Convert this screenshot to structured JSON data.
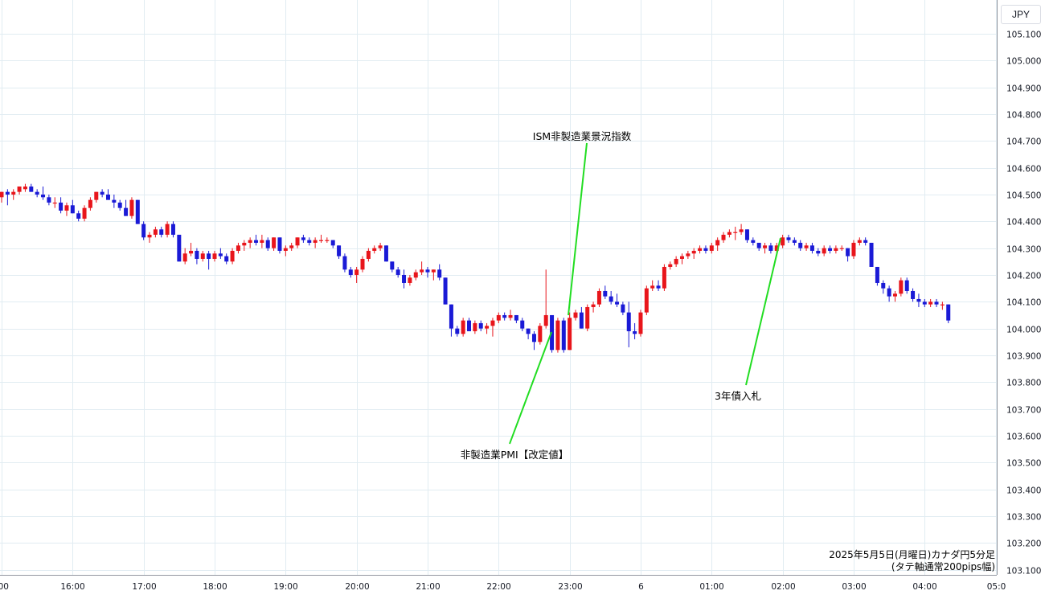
{
  "chart_data": {
    "type": "candlestick",
    "currency_label": "JPY",
    "y_ticks": [
      "105.100",
      "105.000",
      "104.900",
      "104.800",
      "104.700",
      "104.600",
      "104.500",
      "104.400",
      "104.300",
      "104.200",
      "104.100",
      "104.000",
      "103.900",
      "103.800",
      "103.700",
      "103.600",
      "103.500",
      "103.400",
      "103.300",
      "103.200",
      "103.100"
    ],
    "x_ticks": [
      ":00",
      "16:00",
      "17:00",
      "18:00",
      "19:00",
      "20:00",
      "21:00",
      "22:00",
      "23:00",
      "6",
      "01:00",
      "02:00",
      "03:00",
      "04:00",
      "05:0"
    ],
    "ylim": [
      103.09,
      105.13
    ],
    "grid": true,
    "caption_line1": "2025年5月5日(月曜日)カナダ円5分足",
    "caption_line2": "(タテ軸通常200pips幅)",
    "annotations": [
      {
        "label": "ISM非製造業景況指数",
        "time": "23:00"
      },
      {
        "label": "非製造業PMI【改定値】",
        "time": "22:50"
      },
      {
        "label": "3年債入札",
        "time": "02:00"
      }
    ],
    "colors": {
      "up": "#e8151b",
      "down": "#1a1ad6",
      "annotation_line": "#22dd22"
    },
    "start_time": "14:55",
    "interval_minutes": 5,
    "ohlc": [
      [
        104.45,
        104.5,
        104.44,
        104.5
      ],
      [
        104.49,
        104.51,
        104.47,
        104.51
      ],
      [
        104.51,
        104.52,
        104.46,
        104.5
      ],
      [
        104.5,
        104.52,
        104.48,
        104.51
      ],
      [
        104.51,
        104.53,
        104.5,
        104.53
      ],
      [
        104.52,
        104.54,
        104.51,
        104.53
      ],
      [
        104.53,
        104.54,
        104.51,
        104.51
      ],
      [
        104.51,
        104.52,
        104.49,
        104.5
      ],
      [
        104.5,
        104.53,
        104.48,
        104.49
      ],
      [
        104.49,
        104.5,
        104.46,
        104.47
      ],
      [
        104.47,
        104.49,
        104.45,
        104.47
      ],
      [
        104.47,
        104.49,
        104.43,
        104.44
      ],
      [
        104.44,
        104.47,
        104.42,
        104.46
      ],
      [
        104.46,
        104.48,
        104.43,
        104.43
      ],
      [
        104.43,
        104.44,
        104.4,
        104.41
      ],
      [
        104.41,
        104.46,
        104.4,
        104.45
      ],
      [
        104.45,
        104.49,
        104.44,
        104.48
      ],
      [
        104.48,
        104.51,
        104.47,
        104.51
      ],
      [
        104.51,
        104.52,
        104.49,
        104.5
      ],
      [
        104.5,
        104.52,
        104.48,
        104.48
      ],
      [
        104.48,
        104.5,
        104.45,
        104.47
      ],
      [
        104.47,
        104.48,
        104.44,
        104.45
      ],
      [
        104.45,
        104.48,
        104.42,
        104.42
      ],
      [
        104.42,
        104.49,
        104.41,
        104.48
      ],
      [
        104.48,
        104.48,
        104.39,
        104.39
      ],
      [
        104.39,
        104.4,
        104.33,
        104.34
      ],
      [
        104.34,
        104.36,
        104.32,
        104.35
      ],
      [
        104.35,
        104.38,
        104.34,
        104.37
      ],
      [
        104.37,
        104.38,
        104.34,
        104.35
      ],
      [
        104.35,
        104.4,
        104.34,
        104.39
      ],
      [
        104.39,
        104.4,
        104.34,
        104.35
      ],
      [
        104.35,
        104.35,
        104.25,
        104.25
      ],
      [
        104.25,
        104.3,
        104.24,
        104.28
      ],
      [
        104.28,
        104.32,
        104.27,
        104.29
      ],
      [
        104.29,
        104.3,
        104.24,
        104.26
      ],
      [
        104.26,
        104.29,
        104.25,
        104.28
      ],
      [
        104.28,
        104.29,
        104.22,
        104.26
      ],
      [
        104.26,
        104.29,
        104.25,
        104.28
      ],
      [
        104.28,
        104.3,
        104.26,
        104.27
      ],
      [
        104.27,
        104.28,
        104.24,
        104.25
      ],
      [
        104.25,
        104.3,
        104.24,
        104.29
      ],
      [
        104.29,
        104.32,
        104.28,
        104.31
      ],
      [
        104.31,
        104.33,
        104.29,
        104.32
      ],
      [
        104.32,
        104.34,
        104.3,
        104.33
      ],
      [
        104.33,
        104.35,
        104.31,
        104.32
      ],
      [
        104.32,
        104.35,
        104.3,
        104.33
      ],
      [
        104.33,
        104.34,
        104.29,
        104.3
      ],
      [
        104.3,
        104.34,
        104.29,
        104.34
      ],
      [
        104.34,
        104.34,
        104.28,
        104.29
      ],
      [
        104.29,
        104.31,
        104.27,
        104.3
      ],
      [
        104.3,
        104.32,
        104.29,
        104.31
      ],
      [
        104.31,
        104.34,
        104.3,
        104.34
      ],
      [
        104.34,
        104.35,
        104.32,
        104.33
      ],
      [
        104.33,
        104.34,
        104.31,
        104.32
      ],
      [
        104.32,
        104.34,
        104.3,
        104.33
      ],
      [
        104.33,
        104.35,
        104.32,
        104.33
      ],
      [
        104.33,
        104.34,
        104.32,
        104.33
      ],
      [
        104.33,
        104.33,
        104.3,
        104.31
      ],
      [
        104.31,
        104.31,
        104.26,
        104.27
      ],
      [
        104.27,
        104.28,
        104.21,
        104.22
      ],
      [
        104.22,
        104.23,
        104.19,
        104.2
      ],
      [
        104.2,
        104.23,
        104.17,
        104.22
      ],
      [
        104.22,
        104.27,
        104.21,
        104.26
      ],
      [
        104.26,
        104.3,
        104.25,
        104.29
      ],
      [
        104.29,
        104.31,
        104.28,
        104.3
      ],
      [
        104.3,
        104.32,
        104.29,
        104.31
      ],
      [
        104.31,
        104.31,
        104.25,
        104.25
      ],
      [
        104.25,
        104.25,
        104.21,
        104.22
      ],
      [
        104.22,
        104.23,
        104.19,
        104.2
      ],
      [
        104.2,
        104.22,
        104.15,
        104.17
      ],
      [
        104.17,
        104.2,
        104.16,
        104.19
      ],
      [
        104.19,
        104.22,
        104.18,
        104.21
      ],
      [
        104.21,
        104.25,
        104.2,
        104.22
      ],
      [
        104.22,
        104.23,
        104.19,
        104.21
      ],
      [
        104.21,
        104.22,
        104.18,
        104.22
      ],
      [
        104.22,
        104.24,
        104.18,
        104.19
      ],
      [
        104.19,
        104.19,
        104.09,
        104.09
      ],
      [
        104.09,
        104.09,
        103.97,
        104.0
      ],
      [
        104.0,
        104.01,
        103.97,
        103.98
      ],
      [
        103.98,
        104.04,
        103.97,
        104.03
      ],
      [
        104.03,
        104.04,
        103.99,
        103.99
      ],
      [
        103.99,
        104.03,
        103.98,
        104.02
      ],
      [
        104.02,
        104.03,
        103.99,
        104.0
      ],
      [
        104.0,
        104.02,
        103.98,
        104.01
      ],
      [
        104.01,
        104.04,
        103.97,
        104.03
      ],
      [
        104.03,
        104.06,
        104.02,
        104.05
      ],
      [
        104.05,
        104.06,
        104.03,
        104.04
      ],
      [
        104.04,
        104.07,
        104.03,
        104.05
      ],
      [
        104.05,
        104.05,
        104.02,
        104.03
      ],
      [
        104.03,
        104.04,
        103.99,
        104.0
      ],
      [
        104.0,
        104.0,
        103.96,
        103.98
      ],
      [
        103.98,
        103.99,
        103.92,
        103.95
      ],
      [
        103.95,
        104.02,
        103.94,
        104.01
      ],
      [
        104.01,
        104.22,
        104.0,
        104.05
      ],
      [
        104.05,
        104.05,
        103.91,
        103.92
      ],
      [
        103.92,
        104.04,
        103.91,
        104.03
      ],
      [
        104.03,
        104.04,
        103.91,
        103.92
      ],
      [
        103.92,
        104.06,
        103.92,
        104.04
      ],
      [
        104.04,
        104.07,
        104.03,
        104.06
      ],
      [
        104.06,
        104.08,
        104.0,
        104.0
      ],
      [
        104.0,
        104.09,
        103.99,
        104.08
      ],
      [
        104.08,
        104.1,
        104.06,
        104.09
      ],
      [
        104.09,
        104.15,
        104.08,
        104.14
      ],
      [
        104.14,
        104.16,
        104.11,
        104.12
      ],
      [
        104.12,
        104.14,
        104.09,
        104.1
      ],
      [
        104.1,
        104.13,
        104.08,
        104.09
      ],
      [
        104.09,
        104.1,
        104.05,
        104.06
      ],
      [
        104.06,
        104.1,
        103.93,
        103.99
      ],
      [
        103.99,
        104.02,
        103.96,
        103.98
      ],
      [
        103.98,
        104.07,
        103.97,
        104.06
      ],
      [
        104.06,
        104.16,
        104.05,
        104.15
      ],
      [
        104.15,
        104.18,
        104.14,
        104.16
      ],
      [
        104.16,
        104.18,
        104.14,
        104.15
      ],
      [
        104.15,
        104.24,
        104.14,
        104.23
      ],
      [
        104.23,
        104.25,
        104.22,
        104.24
      ],
      [
        104.24,
        104.27,
        104.23,
        104.26
      ],
      [
        104.26,
        104.28,
        104.24,
        104.27
      ],
      [
        104.27,
        104.29,
        104.26,
        104.28
      ],
      [
        104.28,
        104.3,
        104.26,
        104.29
      ],
      [
        104.29,
        104.31,
        104.28,
        104.3
      ],
      [
        104.3,
        104.31,
        104.28,
        104.29
      ],
      [
        104.29,
        104.32,
        104.28,
        104.31
      ],
      [
        104.31,
        104.34,
        104.29,
        104.33
      ],
      [
        104.33,
        104.36,
        104.32,
        104.35
      ],
      [
        104.35,
        104.37,
        104.34,
        104.36
      ],
      [
        104.36,
        104.38,
        104.33,
        104.36
      ],
      [
        104.36,
        104.39,
        104.35,
        104.37
      ],
      [
        104.37,
        104.37,
        104.32,
        104.33
      ],
      [
        104.33,
        104.34,
        104.31,
        104.32
      ],
      [
        104.32,
        104.32,
        104.29,
        104.3
      ],
      [
        104.3,
        104.32,
        104.28,
        104.31
      ],
      [
        104.31,
        104.32,
        104.28,
        104.29
      ],
      [
        104.29,
        104.32,
        104.28,
        104.31
      ],
      [
        104.31,
        104.35,
        104.3,
        104.34
      ],
      [
        104.34,
        104.35,
        104.32,
        104.33
      ],
      [
        104.33,
        104.34,
        104.31,
        104.32
      ],
      [
        104.32,
        104.33,
        104.29,
        104.3
      ],
      [
        104.3,
        104.32,
        104.29,
        104.31
      ],
      [
        104.31,
        104.32,
        104.28,
        104.29
      ],
      [
        104.29,
        104.3,
        104.27,
        104.28
      ],
      [
        104.28,
        104.31,
        104.27,
        104.3
      ],
      [
        104.3,
        104.31,
        104.28,
        104.29
      ],
      [
        104.29,
        104.31,
        104.28,
        104.3
      ],
      [
        104.3,
        104.31,
        104.29,
        104.3
      ],
      [
        104.3,
        104.3,
        104.25,
        104.27
      ],
      [
        104.27,
        104.33,
        104.26,
        104.32
      ],
      [
        104.32,
        104.34,
        104.31,
        104.33
      ],
      [
        104.33,
        104.34,
        104.31,
        104.32
      ],
      [
        104.32,
        104.32,
        104.23,
        104.23
      ],
      [
        104.23,
        104.23,
        104.16,
        104.17
      ],
      [
        104.17,
        104.18,
        104.13,
        104.15
      ],
      [
        104.15,
        104.16,
        104.1,
        104.12
      ],
      [
        104.12,
        104.14,
        104.1,
        104.13
      ],
      [
        104.13,
        104.19,
        104.12,
        104.18
      ],
      [
        104.18,
        104.19,
        104.13,
        104.14
      ],
      [
        104.14,
        104.15,
        104.1,
        104.11
      ],
      [
        104.11,
        104.13,
        104.08,
        104.1
      ],
      [
        104.1,
        104.11,
        104.08,
        104.09
      ],
      [
        104.09,
        104.11,
        104.08,
        104.1
      ],
      [
        104.1,
        104.11,
        104.08,
        104.09
      ],
      [
        104.09,
        104.1,
        104.07,
        104.09
      ],
      [
        104.09,
        104.09,
        104.02,
        104.03
      ]
    ]
  }
}
